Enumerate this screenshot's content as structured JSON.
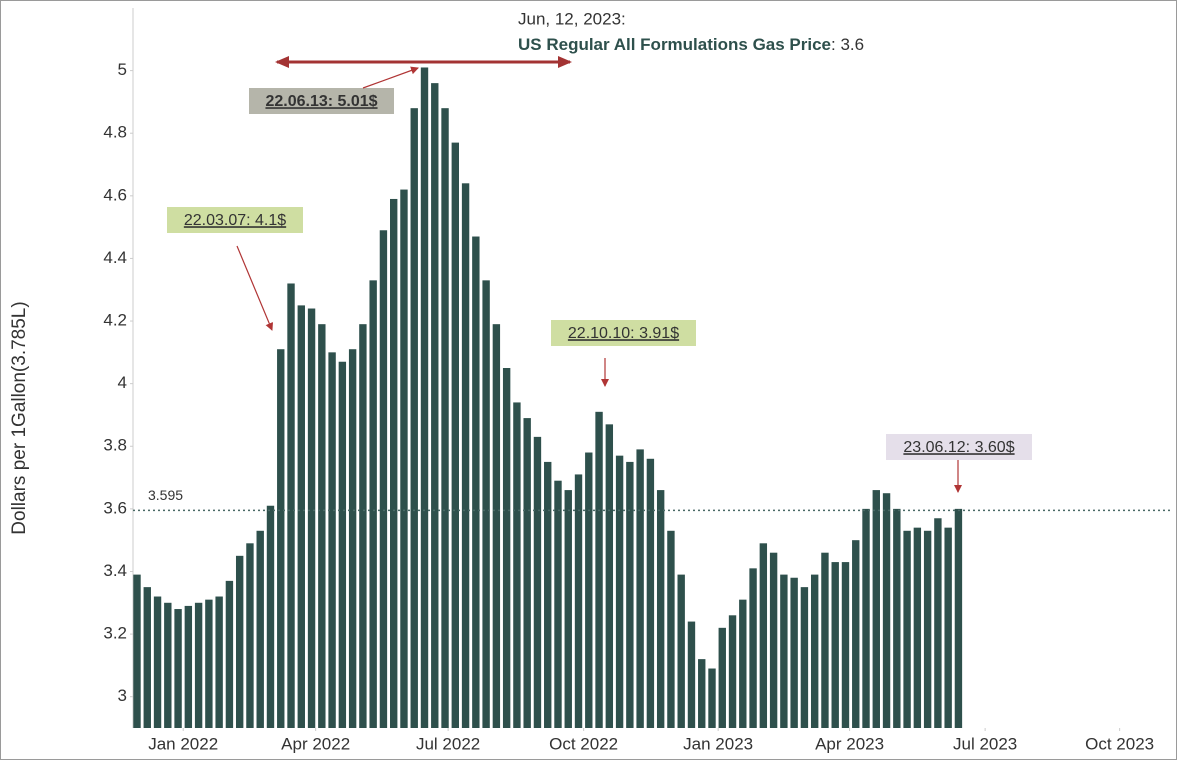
{
  "chart_data": {
    "type": "bar",
    "y_label": "Dollars per 1Gallon(3.785L)",
    "categories": [
      null,
      null,
      null,
      null,
      null,
      null,
      null,
      null,
      null,
      null,
      null,
      null,
      null,
      null,
      null,
      null,
      null,
      null,
      null,
      null,
      null,
      null,
      null,
      null,
      null,
      null,
      null,
      null,
      null,
      null,
      null,
      null,
      null,
      null,
      null,
      null,
      null,
      null,
      null,
      null,
      null,
      null,
      null,
      null,
      null,
      null,
      null,
      null,
      null,
      null,
      null,
      null,
      null,
      null,
      null,
      null,
      null,
      null,
      null,
      null,
      null,
      null,
      null,
      null,
      null,
      null,
      null,
      null,
      null,
      null,
      null,
      null,
      null,
      null,
      null,
      null,
      null,
      null,
      null,
      null,
      null
    ],
    "series": [
      {
        "name": "US Regular All Formulations Gas Price",
        "color": "#2e504c",
        "values": [
          3.39,
          3.35,
          3.32,
          3.3,
          3.28,
          3.29,
          3.3,
          3.31,
          3.32,
          3.37,
          3.45,
          3.49,
          3.53,
          3.61,
          4.11,
          4.32,
          4.25,
          4.24,
          4.19,
          4.1,
          4.07,
          4.11,
          4.19,
          4.33,
          4.49,
          4.59,
          4.62,
          4.88,
          5.01,
          4.96,
          4.88,
          4.77,
          4.64,
          4.47,
          4.33,
          4.19,
          4.05,
          3.94,
          3.89,
          3.83,
          3.75,
          3.69,
          3.66,
          3.71,
          3.78,
          3.91,
          3.87,
          3.77,
          3.75,
          3.79,
          3.76,
          3.66,
          3.53,
          3.39,
          3.24,
          3.12,
          3.09,
          3.22,
          3.26,
          3.31,
          3.41,
          3.49,
          3.46,
          3.39,
          3.38,
          3.35,
          3.39,
          3.46,
          3.43,
          3.43,
          3.5,
          3.6,
          3.66,
          3.65,
          3.6,
          3.53,
          3.54,
          3.53,
          3.57,
          3.54,
          3.6
        ]
      }
    ],
    "xlim": [
      -0.39,
      100.8
    ],
    "xticks": [
      {
        "value": 4.5,
        "label": "Jan 2022"
      },
      {
        "value": 17.4,
        "label": "Apr 2022"
      },
      {
        "value": 30.3,
        "label": "Jul 2022"
      },
      {
        "value": 43.5,
        "label": "Oct 2022"
      },
      {
        "value": 56.6,
        "label": "Jan 2023"
      },
      {
        "value": 69.4,
        "label": "Apr 2023"
      },
      {
        "value": 82.6,
        "label": "Jul 2023"
      },
      {
        "value": 95.7,
        "label": "Oct 2023"
      }
    ],
    "ylim": [
      2.9,
      5.2
    ],
    "yticks": [
      3,
      3.2,
      3.4,
      3.6,
      3.8,
      4,
      4.2,
      4.4,
      4.6,
      4.8,
      5
    ],
    "reference_line": 3.595,
    "annotations": [
      "22.06.13: 5.01$",
      "22.03.07: 4.1$",
      "22.10.10: 3.91$",
      "23.06.12: 3.60$"
    ],
    "tooltip": {
      "date": "Jun, 12, 2023:",
      "value": 3.6
    }
  }
}
